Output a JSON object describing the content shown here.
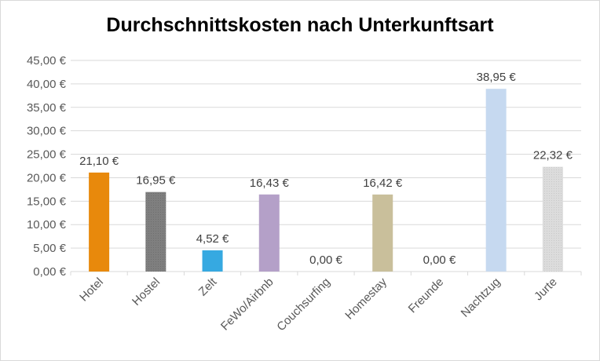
{
  "chart_data": {
    "type": "bar",
    "title": "Durchschnittskosten nach Unterkunftsart",
    "xlabel": "",
    "ylabel": "",
    "ylim": [
      0,
      45
    ],
    "ytick_step": 5,
    "grid": true,
    "legend": "none",
    "yticks": [
      "0,00 €",
      "5,00 €",
      "10,00 €",
      "15,00 €",
      "20,00 €",
      "25,00 €",
      "30,00 €",
      "35,00 €",
      "40,00 €",
      "45,00 €"
    ],
    "categories": [
      "Hotel",
      "Hostel",
      "Zelt",
      "FeWo/Airbnb",
      "Couchsurfing",
      "Homestay",
      "Freunde",
      "Nachtzug",
      "Jurte"
    ],
    "values": [
      21.1,
      16.95,
      4.52,
      16.43,
      0.0,
      16.42,
      0.0,
      38.95,
      22.32
    ],
    "value_labels": [
      "21,10 €",
      "16,95 €",
      "4,52 €",
      "16,43 €",
      "0,00 €",
      "16,42 €",
      "0,00 €",
      "38,95 €",
      "22,32 €"
    ],
    "colors": [
      "#e8890c",
      "#7f7f7f",
      "#36a9e1",
      "#b4a0c8",
      "#dde6f2",
      "#c9bf9b",
      "#dde6f2",
      "#c6d9f0",
      "#d9d9d9"
    ]
  }
}
